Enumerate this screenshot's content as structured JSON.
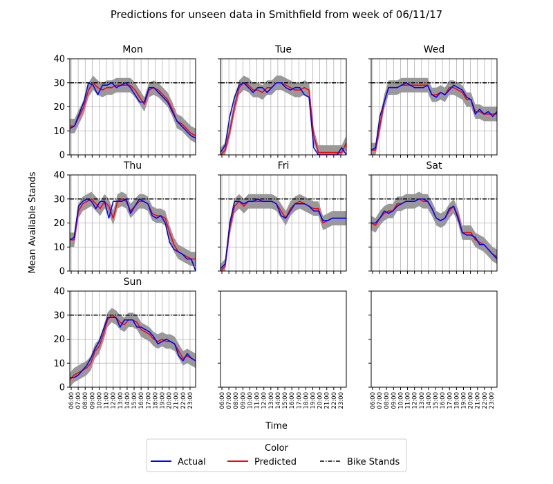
{
  "chart_data": {
    "type": "line",
    "title": "Predictions for unseen data in Smithfield from week of 06/11/17",
    "xlabel": "Time",
    "ylabel": "Mean Available Stands",
    "ylim": [
      0,
      40
    ],
    "yticks": [
      0,
      10,
      20,
      30,
      40
    ],
    "grid": true,
    "bike_stands": 30,
    "band_halfwidth": 3,
    "x_ticks": [
      "06:00",
      "07:00",
      "08:00",
      "09:00",
      "10:00",
      "11:00",
      "12:00",
      "13:00",
      "14:00",
      "15:00",
      "16:00",
      "17:00",
      "18:00",
      "19:00",
      "20:00",
      "21:00",
      "22:00",
      "23:00"
    ],
    "empty_panels": 2,
    "legend": {
      "title": "Color",
      "placement": "bottom-center",
      "entries": [
        "Actual",
        "Predicted",
        "Bike Stands"
      ],
      "colors": [
        "#0000ff",
        "#ff0000",
        "#000000"
      ]
    },
    "panels": [
      {
        "day": "Mon",
        "actual": [
          11,
          12,
          17,
          22,
          30,
          29,
          25,
          29,
          29,
          30,
          28,
          29,
          30,
          28,
          25,
          22,
          22,
          28,
          28,
          26,
          24,
          22,
          18,
          14,
          12,
          10,
          8,
          7
        ],
        "predicted": [
          12,
          12,
          16,
          20,
          27,
          30,
          28,
          27,
          28,
          28,
          29,
          29,
          29,
          29,
          27,
          24,
          21,
          27,
          28,
          27,
          25,
          23,
          19,
          14,
          13,
          11,
          9,
          8
        ]
      },
      {
        "day": "Tue",
        "actual": [
          1,
          4,
          16,
          24,
          29,
          30,
          28,
          26,
          28,
          28,
          26,
          28,
          30,
          30,
          28,
          27,
          28,
          28,
          25,
          24,
          3,
          0,
          0,
          0,
          0,
          0,
          3,
          0
        ],
        "predicted": [
          0,
          2,
          10,
          20,
          28,
          30,
          29,
          27,
          27,
          26,
          28,
          28,
          30,
          30,
          29,
          28,
          27,
          27,
          28,
          27,
          8,
          1,
          1,
          1,
          1,
          1,
          1,
          5
        ]
      },
      {
        "day": "Wed",
        "actual": [
          2,
          3,
          16,
          22,
          28,
          28,
          28,
          29,
          30,
          29,
          28,
          28,
          28,
          29,
          25,
          24,
          26,
          25,
          27,
          29,
          28,
          27,
          24,
          23,
          17,
          19,
          17,
          18,
          16,
          18
        ],
        "predicted": [
          2,
          2,
          12,
          22,
          28,
          28,
          28,
          29,
          29,
          29,
          29,
          29,
          29,
          29,
          25,
          25,
          26,
          25,
          28,
          28,
          27,
          26,
          23,
          23,
          18,
          18,
          17,
          17,
          17,
          17
        ]
      },
      {
        "day": "Thu",
        "actual": [
          13,
          14,
          27,
          29,
          30,
          29,
          26,
          29,
          29,
          22,
          29,
          29,
          29,
          30,
          24,
          27,
          30,
          29,
          28,
          23,
          22,
          23,
          20,
          12,
          9,
          8,
          7,
          5,
          5,
          0
        ],
        "predicted": [
          13,
          13,
          25,
          28,
          29,
          30,
          28,
          26,
          29,
          27,
          22,
          29,
          30,
          29,
          25,
          27,
          29,
          29,
          28,
          24,
          23,
          23,
          22,
          16,
          11,
          8,
          7,
          6,
          5,
          5
        ]
      },
      {
        "day": "Fri",
        "actual": [
          1,
          3,
          20,
          29,
          29,
          28,
          29,
          29,
          30,
          29,
          29,
          29,
          28,
          23,
          22,
          25,
          28,
          28,
          28,
          27,
          25,
          25,
          21,
          21,
          22,
          22,
          22,
          22
        ],
        "predicted": [
          0,
          2,
          18,
          27,
          29,
          27,
          29,
          29,
          29,
          29,
          29,
          29,
          28,
          25,
          22,
          26,
          28,
          29,
          28,
          27,
          26,
          26,
          20,
          21,
          22,
          22,
          22,
          22
        ]
      },
      {
        "day": "Sat",
        "actual": [
          20,
          20,
          22,
          25,
          24,
          25,
          27,
          28,
          29,
          29,
          29,
          30,
          30,
          29,
          26,
          22,
          21,
          22,
          26,
          27,
          22,
          16,
          15,
          15,
          14,
          11,
          11,
          9,
          7,
          5
        ],
        "predicted": [
          20,
          19,
          22,
          24,
          25,
          25,
          28,
          28,
          29,
          29,
          29,
          30,
          29,
          29,
          26,
          22,
          21,
          22,
          25,
          27,
          23,
          16,
          16,
          16,
          13,
          12,
          11,
          9,
          7,
          6
        ]
      },
      {
        "day": "Sun",
        "actual": [
          4,
          4,
          5,
          7,
          9,
          12,
          16,
          19,
          24,
          29,
          29,
          29,
          25,
          28,
          28,
          28,
          25,
          25,
          24,
          23,
          21,
          18,
          19,
          20,
          19,
          18,
          13,
          11,
          14,
          12,
          11
        ],
        "predicted": [
          3,
          5,
          6,
          7,
          8,
          10,
          15,
          17,
          22,
          28,
          30,
          29,
          27,
          26,
          28,
          28,
          27,
          24,
          23,
          22,
          20,
          19,
          20,
          19,
          19,
          18,
          15,
          12,
          13,
          12,
          11
        ]
      }
    ]
  }
}
